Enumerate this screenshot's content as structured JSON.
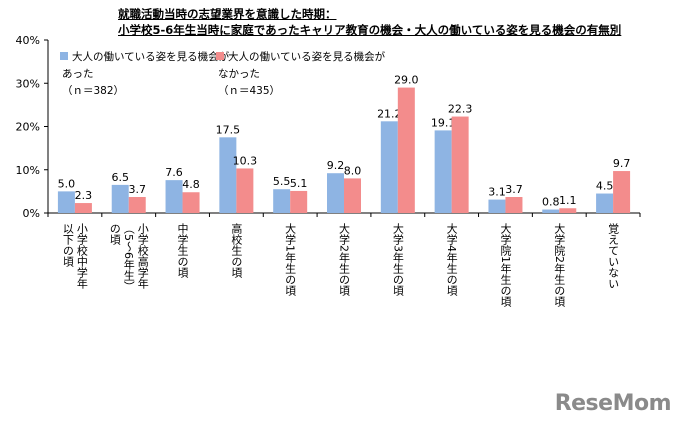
{
  "chart_data": {
    "type": "bar",
    "title_lines": [
      "就職活動当時の志望業界を意識した時期：",
      "小学校5-6年生当時に家庭であったキャリア教育の機会・大人の働いている姿を見る機会の有無別"
    ],
    "yticks": [
      "0%",
      "10%",
      "20%",
      "30%",
      "40%"
    ],
    "ylim": [
      0,
      40
    ],
    "grid": false,
    "categories": [
      "小学校中学年以下の頃",
      "小学校高学年（5～6年生）の頃",
      "中学生の頃",
      "高校生の頃",
      "大学1年生の頃",
      "大学2年生の頃",
      "大学3年生の頃",
      "大学4年生の頃",
      "大学院1年生の頃",
      "大学院2年生の頃",
      "覚えていない"
    ],
    "category_label_columns": [
      [
        "小学校中学年",
        "以下の頃"
      ],
      [
        "小学校高学年",
        "（5～6年生）",
        "の頃"
      ],
      [
        "中学生の頃"
      ],
      [
        "高校生の頃"
      ],
      [
        "大学1年生の頃"
      ],
      [
        "大学2年生の頃"
      ],
      [
        "大学3年生の頃"
      ],
      [
        "大学4年生の頃"
      ],
      [
        "大学院1年生の頃"
      ],
      [
        "大学院2年生の頃"
      ],
      [
        "覚えていない"
      ]
    ],
    "series": [
      {
        "name": "大人の働いている姿を見る機会があった",
        "legend_lines": [
          "大人の働いている姿を見る機会が",
          "あった",
          "（ｎ＝382）"
        ],
        "color": "#8EB4E3",
        "values": [
          5.0,
          6.5,
          7.6,
          17.5,
          5.5,
          9.2,
          21.2,
          19.1,
          3.1,
          0.8,
          4.5
        ],
        "labels": [
          "5.0",
          "6.5",
          "7.6",
          "17.5",
          "5.5",
          "9.2",
          "21.2",
          "19.1",
          "3.1",
          "0.8",
          "4.5"
        ]
      },
      {
        "name": "大人の働いている姿を見る機会がなかった",
        "legend_lines": [
          "大人の働いている姿を見る機会が",
          "なかった",
          "（ｎ＝435）"
        ],
        "color": "#F38C8C",
        "values": [
          2.3,
          3.7,
          4.8,
          10.3,
          5.1,
          8.0,
          29.0,
          22.3,
          3.7,
          1.1,
          9.7
        ],
        "labels": [
          "2.3",
          "3.7",
          "4.8",
          "10.3",
          "5.1",
          "8.0",
          "29.0",
          "22.3",
          "3.7",
          "1.1",
          "9.7"
        ]
      }
    ],
    "legend_position": "top-left"
  },
  "logo": {
    "text": "ReseMom"
  }
}
